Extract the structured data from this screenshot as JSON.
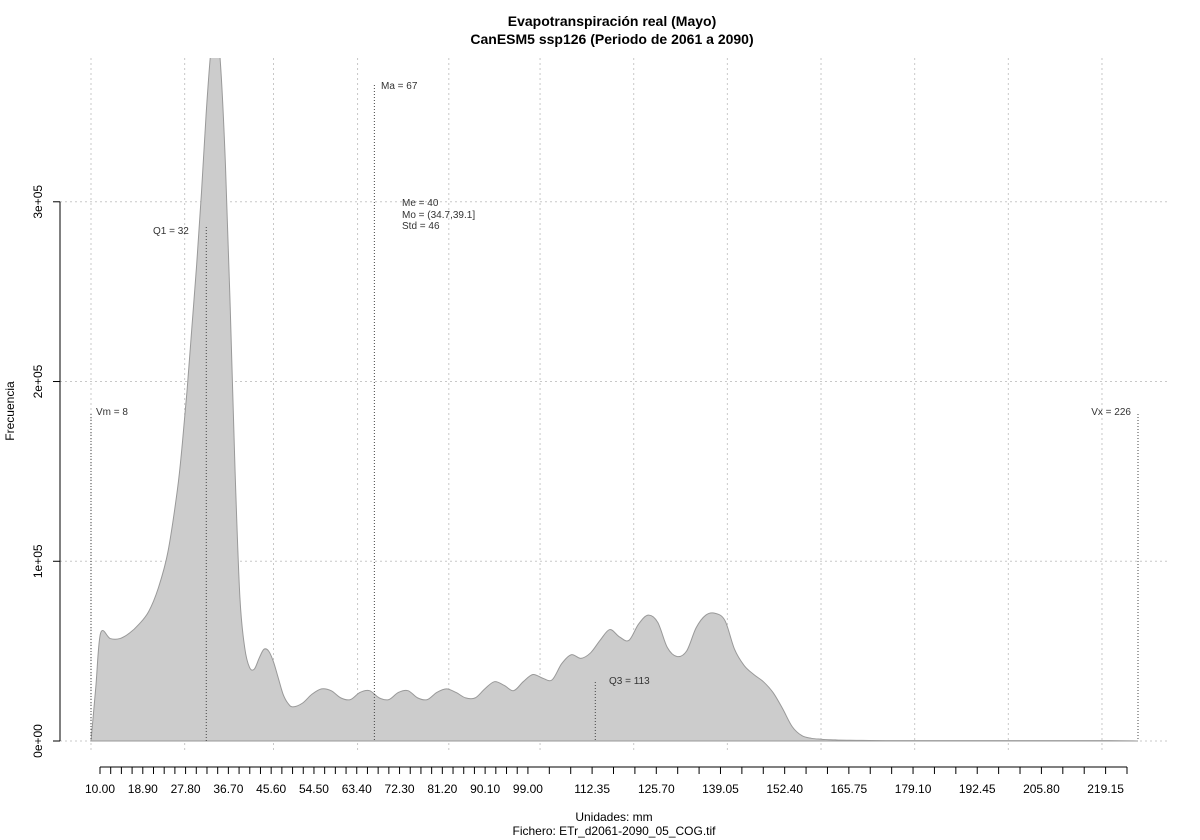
{
  "chart_data": {
    "type": "area",
    "title": "Evapotranspiración real (Mayo)",
    "subtitle": "CanESM5 ssp126 (Periodo de 2061 a 2090)",
    "xlabel": "Unidades: mm",
    "ylabel": "Frecuencia",
    "footer": "Fichero: ETr_d2061-2090_05_COG.tif",
    "xlim": [
      8,
      226
    ],
    "ylim": [
      0,
      380000
    ],
    "x_ticks": [
      "10.00",
      "18.90",
      "27.80",
      "36.70",
      "45.60",
      "54.50",
      "63.40",
      "72.30",
      "81.20",
      "90.10",
      "99.00",
      "112.35",
      "125.70",
      "139.05",
      "152.40",
      "165.75",
      "179.10",
      "192.45",
      "205.80",
      "219.15"
    ],
    "x_tick_values": [
      10,
      12.225,
      14.45,
      16.675,
      18.9,
      21.125,
      23.35,
      25.575,
      27.8,
      30.025,
      32.25,
      34.475,
      36.7,
      38.925,
      41.15,
      43.375,
      45.6,
      47.825,
      50.05,
      52.275,
      54.5,
      56.725,
      58.95,
      61.175,
      63.4,
      65.625,
      67.85,
      70.075,
      72.3,
      74.525,
      76.75,
      78.975,
      81.2,
      83.425,
      85.65,
      87.875,
      90.1,
      92.325,
      94.55,
      96.775,
      99,
      103.45,
      107.9,
      112.35,
      116.8,
      121.25,
      125.7,
      130.15,
      134.6,
      139.05,
      143.5,
      147.95,
      152.4,
      156.85,
      161.3,
      165.75,
      170.2,
      174.65,
      179.1,
      183.55,
      188,
      192.45,
      196.9,
      201.35,
      205.8,
      210.25,
      214.7,
      219.15,
      223.6
    ],
    "y_ticks": [
      {
        "value": 0,
        "label": "0e+00"
      },
      {
        "value": 100000,
        "label": "1e+05"
      },
      {
        "value": 200000,
        "label": "2e+05"
      },
      {
        "value": 300000,
        "label": "3e+05"
      }
    ],
    "x_grid": [
      8,
      27.5,
      46,
      63.5,
      82.5,
      101.5,
      121,
      140.5,
      160,
      179.5,
      199,
      218.5
    ],
    "grid": true,
    "fill_color": "#cccccc",
    "line_color": "#999999",
    "density": {
      "x": [
        8,
        9,
        10,
        12,
        14,
        16,
        18,
        20,
        22,
        24,
        26,
        27,
        28,
        29,
        30,
        31,
        32,
        33,
        34,
        35,
        36,
        37,
        38,
        39,
        40,
        41,
        42,
        43,
        44,
        45,
        46,
        47,
        48,
        49,
        50,
        52,
        54,
        56,
        58,
        60,
        62,
        64,
        66,
        68,
        70,
        72,
        74,
        76,
        78,
        80,
        82,
        84,
        86,
        88,
        90,
        92,
        94,
        96,
        98,
        100,
        102,
        104,
        106,
        108,
        110,
        112,
        114,
        116,
        118,
        120,
        122,
        124,
        126,
        128,
        130,
        132,
        134,
        136,
        138,
        140,
        142,
        144,
        146,
        148,
        150,
        152,
        154,
        156,
        158,
        160,
        161,
        162,
        163,
        164,
        166,
        168,
        170,
        175,
        180,
        190,
        200,
        210,
        220,
        226
      ],
      "y": [
        0,
        30000,
        60000,
        57000,
        57000,
        60000,
        65000,
        72000,
        85000,
        105000,
        140000,
        165000,
        195000,
        230000,
        265000,
        305000,
        350000,
        385000,
        400000,
        375000,
        320000,
        240000,
        150000,
        80000,
        52000,
        41000,
        40000,
        46000,
        51000,
        50000,
        44000,
        35000,
        26000,
        21000,
        19000,
        21000,
        26000,
        29000,
        28000,
        24000,
        23000,
        27000,
        28000,
        24000,
        23000,
        27000,
        28000,
        24000,
        23000,
        27000,
        29000,
        27000,
        24000,
        24000,
        29000,
        33000,
        31000,
        28000,
        33000,
        37000,
        35000,
        34000,
        43000,
        48000,
        46000,
        49000,
        56000,
        62000,
        58000,
        56000,
        65000,
        70000,
        66000,
        52000,
        47000,
        50000,
        63000,
        70000,
        71000,
        67000,
        51000,
        42000,
        37000,
        33000,
        27000,
        18000,
        8000,
        3000,
        1500,
        1000,
        800,
        700,
        600,
        500,
        400,
        350,
        300,
        200,
        200,
        200,
        200,
        200,
        200,
        0
      ]
    },
    "annotations": {
      "vm": {
        "value": 8,
        "label": "Vm = 8"
      },
      "q1": {
        "value": 32,
        "label": "Q1 = 32"
      },
      "ma": {
        "value": 67,
        "label": "Ma = 67"
      },
      "me": {
        "label": "Me = 40"
      },
      "mo": {
        "label": "Mo = (34.7,39.1]"
      },
      "std": {
        "label": "Std = 46"
      },
      "q3": {
        "value": 113,
        "label": "Q3 = 113"
      },
      "vx": {
        "value": 226,
        "label": "Vx = 226"
      }
    }
  }
}
